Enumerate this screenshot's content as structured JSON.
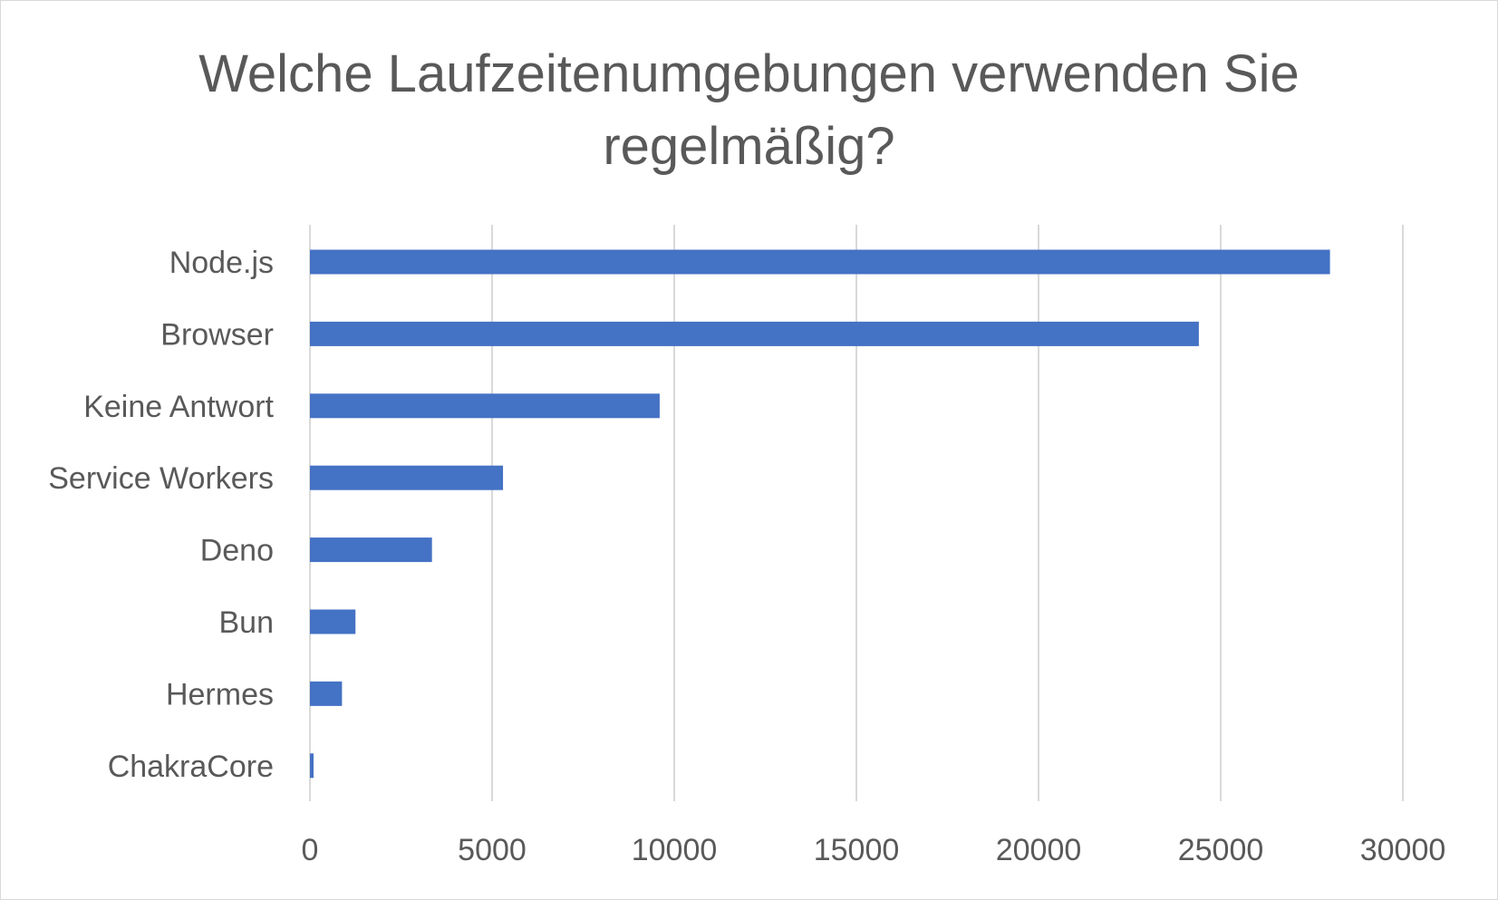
{
  "chart_data": {
    "type": "bar",
    "orientation": "horizontal",
    "title": "Welche Laufzeitenumgebungen verwenden Sie regelmäßig?",
    "title_lines": [
      "Welche Laufzeitenumgebungen verwenden Sie",
      "regelmäßig?"
    ],
    "categories": [
      "Node.js",
      "Browser",
      "Keine Antwort",
      "Service Workers",
      "Deno",
      "Bun",
      "Hermes",
      "ChakraCore"
    ],
    "values": [
      28000,
      24400,
      9600,
      5300,
      3350,
      1250,
      880,
      100
    ],
    "xlim": [
      0,
      30000
    ],
    "xticks": [
      0,
      5000,
      10000,
      15000,
      20000,
      25000,
      30000
    ],
    "xtick_labels": [
      "0",
      "5000",
      "10000",
      "15000",
      "20000",
      "25000",
      "30000"
    ],
    "grid": true,
    "legend": false,
    "bar_color": "#4472c4",
    "grid_color": "#d9d9d9"
  }
}
